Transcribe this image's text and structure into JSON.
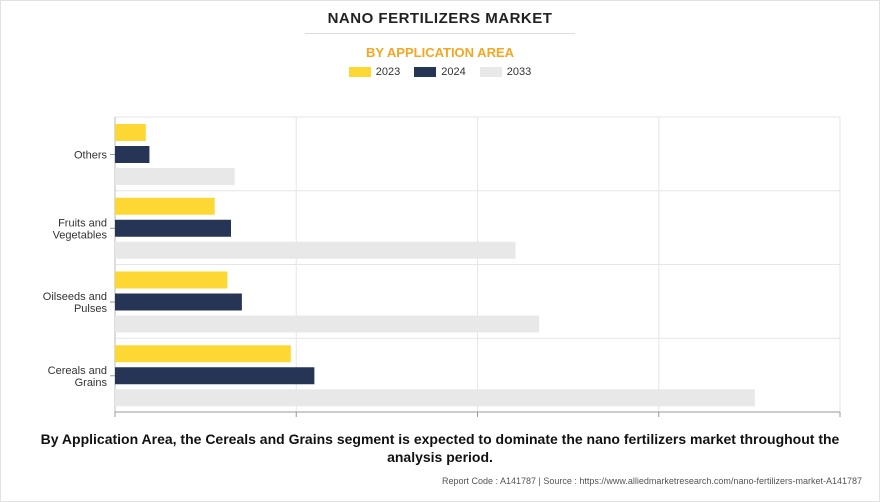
{
  "title": "NANO FERTILIZERS MARKET",
  "subtitle": "BY APPLICATION AREA",
  "caption": "By Application Area, the Cereals and Grains segment is expected to dominate the nano fertilizers market throughout the analysis period.",
  "footer": "Report Code : A141787  |  Source : https://www.alliedmarketresearch.com/nano-fertilizers-market-A141787",
  "chart_data": {
    "type": "bar",
    "orientation": "horizontal",
    "categories": [
      "Others",
      "Fruits and Vegetables",
      "Oilseeds and Pulses",
      "Cereals and Grains"
    ],
    "category_lines": [
      [
        "Others"
      ],
      [
        "Fruits and",
        "Vegetables"
      ],
      [
        "Oilseeds and",
        "Pulses"
      ],
      [
        "Cereals and",
        "Grains"
      ]
    ],
    "series": [
      {
        "name": "2023",
        "color": "#fdd835",
        "values": [
          0.17,
          0.55,
          0.62,
          0.97
        ]
      },
      {
        "name": "2024",
        "color": "#263556",
        "values": [
          0.19,
          0.64,
          0.7,
          1.1
        ]
      },
      {
        "name": "2033",
        "color": "#e8e8e8",
        "values": [
          0.66,
          2.21,
          2.34,
          3.53
        ]
      }
    ],
    "xlim": [
      0,
      4
    ],
    "grid": true,
    "legend": "top-center"
  }
}
